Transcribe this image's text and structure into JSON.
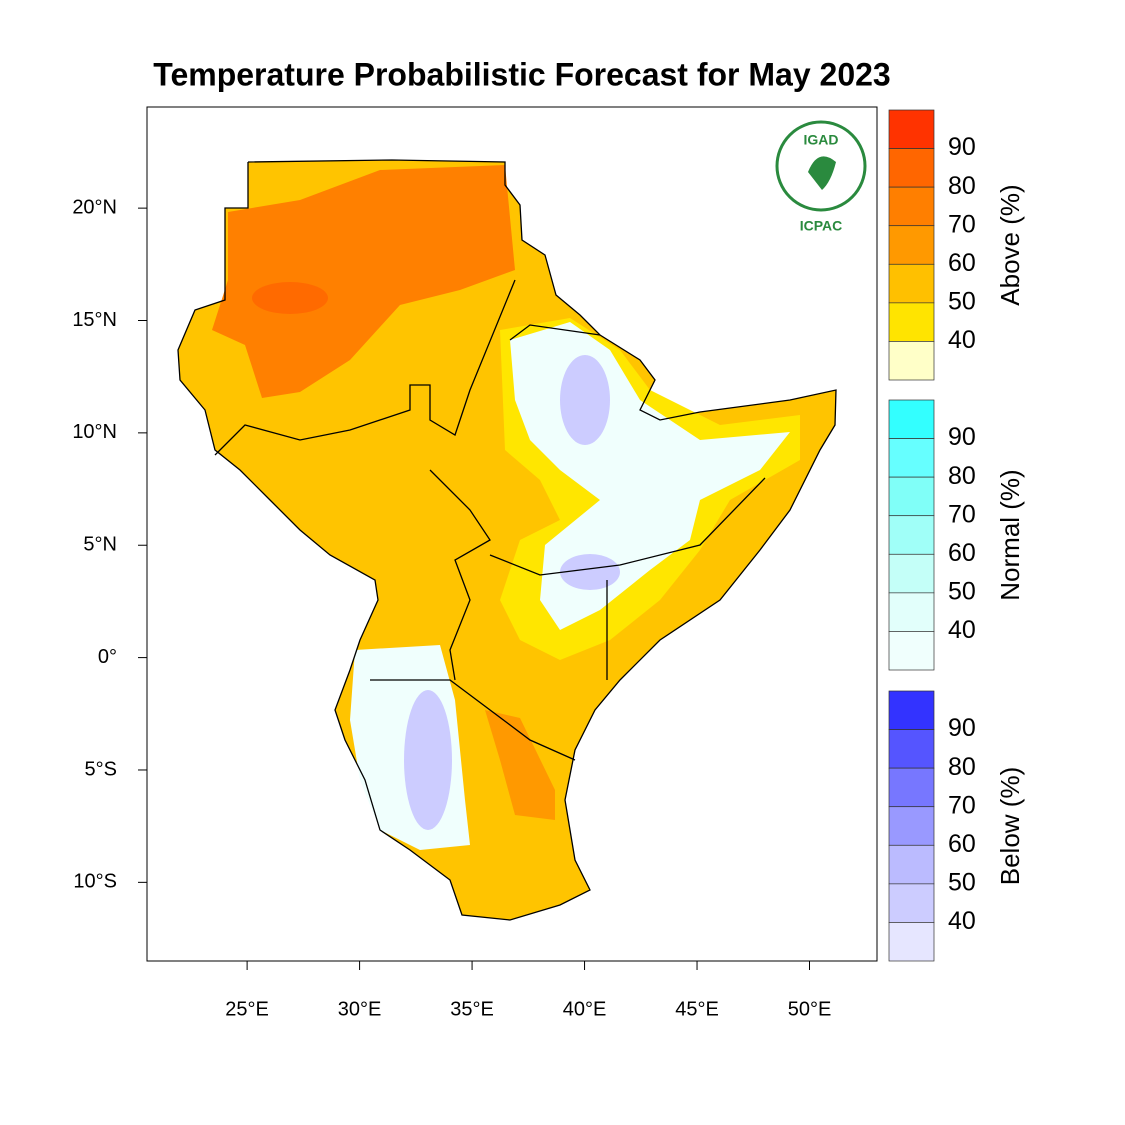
{
  "title": "Temperature Probabilistic Forecast for May 2023",
  "map": {
    "xlim": [
      20.55,
      53
    ],
    "ylim": [
      -13.5,
      24.5
    ],
    "xticks": [
      {
        "value": 25,
        "label": "25°E"
      },
      {
        "value": 30,
        "label": "30°E"
      },
      {
        "value": 35,
        "label": "35°E"
      },
      {
        "value": 40,
        "label": "40°E"
      },
      {
        "value": 45,
        "label": "45°E"
      },
      {
        "value": 50,
        "label": "50°E"
      }
    ],
    "yticks": [
      {
        "value": 20,
        "label": "20°N"
      },
      {
        "value": 15,
        "label": "15°N"
      },
      {
        "value": 10,
        "label": "10°N"
      },
      {
        "value": 5,
        "label": "5°N"
      },
      {
        "value": 0,
        "label": "0°"
      },
      {
        "value": -5,
        "label": "5°S"
      },
      {
        "value": -10,
        "label": "10°S"
      }
    ]
  },
  "logo": {
    "top": "IGAD",
    "bottom": "ICPAC"
  },
  "colorbars": [
    {
      "title": "Above (%)",
      "labels": [
        90,
        80,
        70,
        60,
        50,
        40
      ],
      "colors": [
        "#ff3300",
        "#ff6600",
        "#ff7f00",
        "#ff9900",
        "#ffc000",
        "#ffe400",
        "#ffffc8"
      ]
    },
    {
      "title": "Normal (%)",
      "labels": [
        90,
        80,
        70,
        60,
        50,
        40
      ],
      "colors": [
        "#33ffff",
        "#66ffff",
        "#80fff8",
        "#a0fff8",
        "#c4fff8",
        "#e2fffb",
        "#f0fffd"
      ]
    },
    {
      "title": "Below (%)",
      "labels": [
        90,
        80,
        70,
        60,
        50,
        40
      ],
      "colors": [
        "#3333ff",
        "#5555ff",
        "#7777ff",
        "#9999ff",
        "#bbbbff",
        "#ccccff",
        "#e6e6ff"
      ]
    }
  ]
}
